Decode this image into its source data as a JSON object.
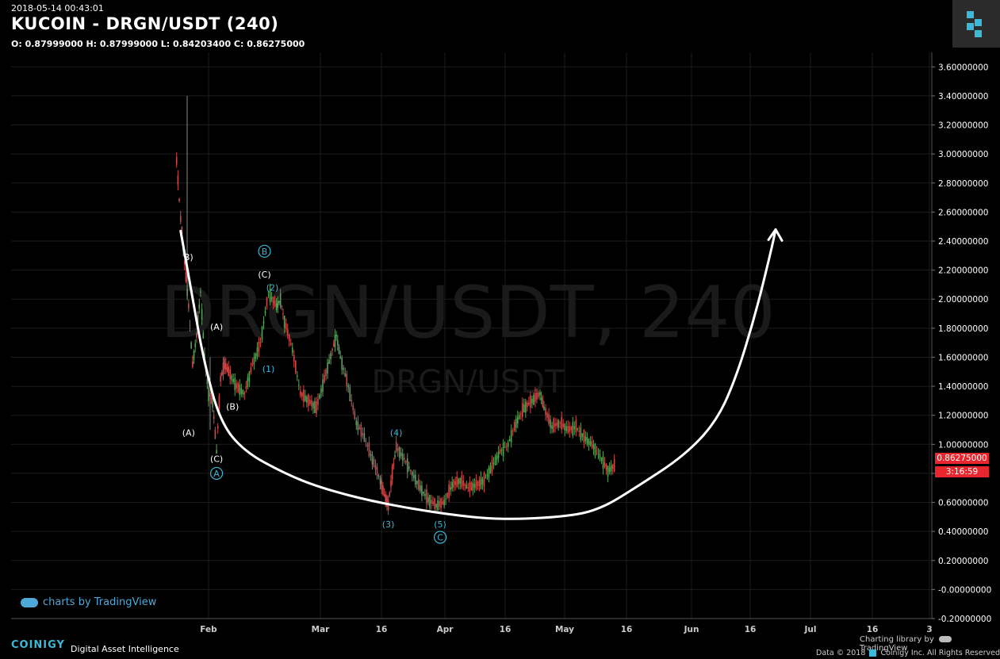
{
  "header": {
    "timestamp": "2018-05-14 00:43:01",
    "title": "KUCOIN - DRGN/USDT (240)",
    "ohlc": "O: 0.87999000 H: 0.87999000 L: 0.84203400 C: 0.86275000"
  },
  "watermark": {
    "big": "DRGN/USDT, 240",
    "small": "DRGN/USDT"
  },
  "price_tag": {
    "price": "0.86275000",
    "countdown": "3:16:59"
  },
  "footer": {
    "tv_link": "charts by TradingView",
    "brand": "COINIGY",
    "tagline": "Digital Asset Intelligence",
    "charting_by": "Charting library by",
    "tradingview": "TradingView",
    "copyright_pre": "Data © 2018",
    "copyright": "Coinigy Inc. All Rights Reserved"
  },
  "colors": {
    "background": "#000000",
    "up": "#5aa05a",
    "down": "#d04848",
    "accent": "#3cb8d8",
    "price_tag": "#e8262e",
    "curve": "#ffffff"
  },
  "chart_data": {
    "type": "line",
    "title": "KUCOIN - DRGN/USDT (240)",
    "ylim": [
      -0.2,
      3.7
    ],
    "y_ticks": [
      "3.60000000",
      "3.40000000",
      "3.20000000",
      "3.00000000",
      "2.80000000",
      "2.60000000",
      "2.40000000",
      "2.20000000",
      "2.00000000",
      "1.80000000",
      "1.60000000",
      "1.40000000",
      "1.20000000",
      "1.00000000",
      "0.80000000",
      "0.60000000",
      "0.40000000",
      "0.20000000",
      "-0.00000000",
      "-0.20000000"
    ],
    "x_ticks": [
      "Feb",
      "Mar",
      "16",
      "Apr",
      "16",
      "May",
      "16",
      "Jun",
      "16",
      "Jul",
      "16",
      "3"
    ],
    "series": [
      {
        "values": [
          {
            "x": "2018-01-24",
            "y": 2.95
          },
          {
            "x": "2018-01-25",
            "y": 2.55
          },
          {
            "x": "2018-01-26",
            "y": 2.25
          },
          {
            "x": "2018-01-27",
            "y": 1.95
          },
          {
            "x": "2018-01-28",
            "y": 1.55
          },
          {
            "x": "2018-01-29",
            "y": 1.75
          },
          {
            "x": "2018-01-30",
            "y": 2.05
          },
          {
            "x": "2018-01-31",
            "y": 1.6
          },
          {
            "x": "2018-02-01",
            "y": 1.35
          },
          {
            "x": "2018-02-02",
            "y": 1.3
          },
          {
            "x": "2018-02-03",
            "y": 0.95
          },
          {
            "x": "2018-02-04",
            "y": 1.45
          },
          {
            "x": "2018-02-05",
            "y": 1.55
          },
          {
            "x": "2018-02-06",
            "y": 1.5
          },
          {
            "x": "2018-02-08",
            "y": 1.4
          },
          {
            "x": "2018-02-10",
            "y": 1.35
          },
          {
            "x": "2018-02-12",
            "y": 1.55
          },
          {
            "x": "2018-02-14",
            "y": 1.7
          },
          {
            "x": "2018-02-16",
            "y": 2.05
          },
          {
            "x": "2018-02-18",
            "y": 1.95
          },
          {
            "x": "2018-02-19",
            "y": 2.0
          },
          {
            "x": "2018-02-20",
            "y": 1.85
          },
          {
            "x": "2018-02-22",
            "y": 1.65
          },
          {
            "x": "2018-02-24",
            "y": 1.35
          },
          {
            "x": "2018-02-26",
            "y": 1.3
          },
          {
            "x": "2018-02-28",
            "y": 1.25
          },
          {
            "x": "2018-03-02",
            "y": 1.45
          },
          {
            "x": "2018-03-04",
            "y": 1.65
          },
          {
            "x": "2018-03-05",
            "y": 1.75
          },
          {
            "x": "2018-03-06",
            "y": 1.6
          },
          {
            "x": "2018-03-08",
            "y": 1.4
          },
          {
            "x": "2018-03-10",
            "y": 1.15
          },
          {
            "x": "2018-03-12",
            "y": 1.05
          },
          {
            "x": "2018-03-14",
            "y": 0.9
          },
          {
            "x": "2018-03-16",
            "y": 0.75
          },
          {
            "x": "2018-03-17",
            "y": 0.65
          },
          {
            "x": "2018-03-18",
            "y": 0.58
          },
          {
            "x": "2018-03-19",
            "y": 0.8
          },
          {
            "x": "2018-03-20",
            "y": 0.98
          },
          {
            "x": "2018-03-22",
            "y": 0.9
          },
          {
            "x": "2018-03-24",
            "y": 0.8
          },
          {
            "x": "2018-03-26",
            "y": 0.7
          },
          {
            "x": "2018-03-28",
            "y": 0.62
          },
          {
            "x": "2018-03-30",
            "y": 0.58
          },
          {
            "x": "2018-04-01",
            "y": 0.6
          },
          {
            "x": "2018-04-03",
            "y": 0.72
          },
          {
            "x": "2018-04-05",
            "y": 0.75
          },
          {
            "x": "2018-04-07",
            "y": 0.7
          },
          {
            "x": "2018-04-09",
            "y": 0.72
          },
          {
            "x": "2018-04-11",
            "y": 0.75
          },
          {
            "x": "2018-04-13",
            "y": 0.85
          },
          {
            "x": "2018-04-15",
            "y": 0.95
          },
          {
            "x": "2018-04-17",
            "y": 1.0
          },
          {
            "x": "2018-04-19",
            "y": 1.15
          },
          {
            "x": "2018-04-21",
            "y": 1.25
          },
          {
            "x": "2018-04-23",
            "y": 1.3
          },
          {
            "x": "2018-04-25",
            "y": 1.35
          },
          {
            "x": "2018-04-26",
            "y": 1.25
          },
          {
            "x": "2018-04-28",
            "y": 1.12
          },
          {
            "x": "2018-04-30",
            "y": 1.15
          },
          {
            "x": "2018-05-02",
            "y": 1.1
          },
          {
            "x": "2018-05-04",
            "y": 1.12
          },
          {
            "x": "2018-05-06",
            "y": 1.05
          },
          {
            "x": "2018-05-08",
            "y": 1.0
          },
          {
            "x": "2018-05-10",
            "y": 0.92
          },
          {
            "x": "2018-05-12",
            "y": 0.82
          },
          {
            "x": "2018-05-14",
            "y": 0.86
          }
        ]
      }
    ],
    "projection_curve": [
      {
        "x": "2018-01-25",
        "y": 2.47
      },
      {
        "x": "2018-01-28",
        "y": 2.0
      },
      {
        "x": "2018-01-31",
        "y": 1.55
      },
      {
        "x": "2018-02-04",
        "y": 1.15
      },
      {
        "x": "2018-02-10",
        "y": 0.95
      },
      {
        "x": "2018-02-20",
        "y": 0.8
      },
      {
        "x": "2018-03-01",
        "y": 0.7
      },
      {
        "x": "2018-03-15",
        "y": 0.6
      },
      {
        "x": "2018-04-01",
        "y": 0.52
      },
      {
        "x": "2018-04-15",
        "y": 0.48
      },
      {
        "x": "2018-05-01",
        "y": 0.5
      },
      {
        "x": "2018-05-10",
        "y": 0.55
      },
      {
        "x": "2018-05-20",
        "y": 0.72
      },
      {
        "x": "2018-05-31",
        "y": 0.92
      },
      {
        "x": "2018-06-08",
        "y": 1.15
      },
      {
        "x": "2018-06-13",
        "y": 1.45
      },
      {
        "x": "2018-06-18",
        "y": 1.9
      },
      {
        "x": "2018-06-22",
        "y": 2.35
      },
      {
        "x": "2018-06-23",
        "y": 2.48
      }
    ],
    "annotations": [
      {
        "text": "B)",
        "x": "2018-01-27",
        "y": 2.29,
        "color": "#ffffff"
      },
      {
        "text": "(A)",
        "x": "2018-02-03",
        "y": 1.81,
        "color": "#ffffff"
      },
      {
        "text": "(A)",
        "x": "2018-01-27",
        "y": 1.08,
        "color": "#ffffff"
      },
      {
        "text": "(C)",
        "x": "2018-02-03",
        "y": 0.9,
        "color": "#ffffff"
      },
      {
        "text": "A",
        "x": "2018-02-03",
        "y": 0.8,
        "color": "#3cb8d8",
        "circled": true
      },
      {
        "text": "(B)",
        "x": "2018-02-07",
        "y": 1.26,
        "color": "#ffffff"
      },
      {
        "text": "B",
        "x": "2018-02-15",
        "y": 2.33,
        "color": "#3cb8d8",
        "circled": true
      },
      {
        "text": "(C)",
        "x": "2018-02-15",
        "y": 2.17,
        "color": "#ffffff"
      },
      {
        "text": "(2)",
        "x": "2018-02-17",
        "y": 2.08,
        "color": "#3cb8d8"
      },
      {
        "text": "(1)",
        "x": "2018-02-16",
        "y": 1.52,
        "color": "#3cb8d8"
      },
      {
        "text": "(4)",
        "x": "2018-03-20",
        "y": 1.08,
        "color": "#3cb8d8"
      },
      {
        "text": "(3)",
        "x": "2018-03-18",
        "y": 0.45,
        "color": "#3cb8d8"
      },
      {
        "text": "(5)",
        "x": "2018-03-31",
        "y": 0.45,
        "color": "#3cb8d8"
      },
      {
        "text": "C",
        "x": "2018-03-31",
        "y": 0.36,
        "color": "#3cb8d8",
        "circled": true
      }
    ]
  }
}
